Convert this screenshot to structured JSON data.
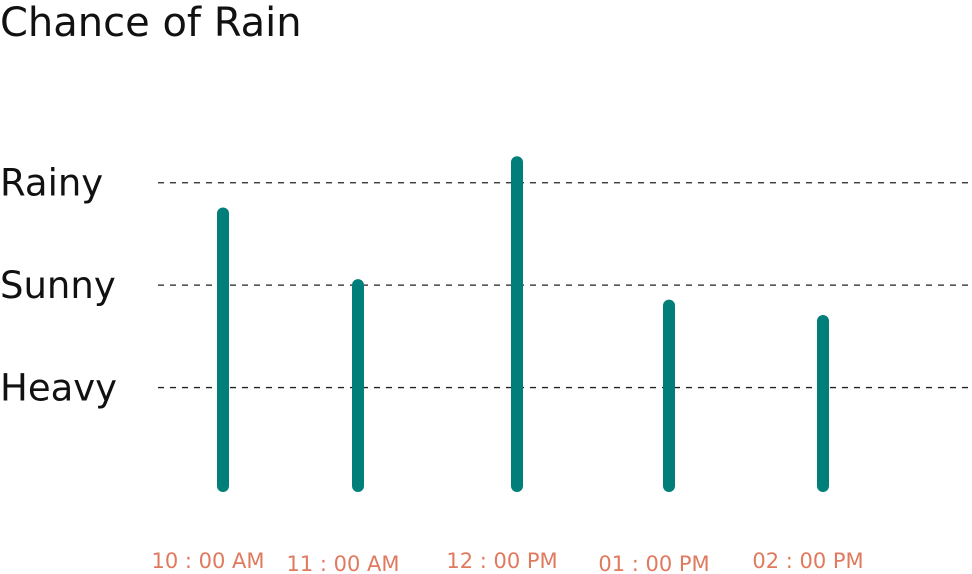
{
  "chart_data": {
    "type": "bar",
    "title": "Chance of Rain",
    "xlabel": "",
    "ylabel": "",
    "levels": [
      "Rainy",
      "Sunny",
      "Heavy"
    ],
    "categories": [
      "10 : 00 AM",
      "11 : 00 AM",
      "12 : 00 PM",
      "01 : 00 PM",
      "02 : 00 PM"
    ],
    "values": [
      2.3,
      1.6,
      2.8,
      1.4,
      1.25
    ],
    "level_values": [
      2.6,
      1.6,
      0.6
    ],
    "ylim": [
      -0.4,
      3
    ],
    "grid": true,
    "legend": "none",
    "bar_color": "#007f7a",
    "tick_label_color": "#e07a5f"
  }
}
